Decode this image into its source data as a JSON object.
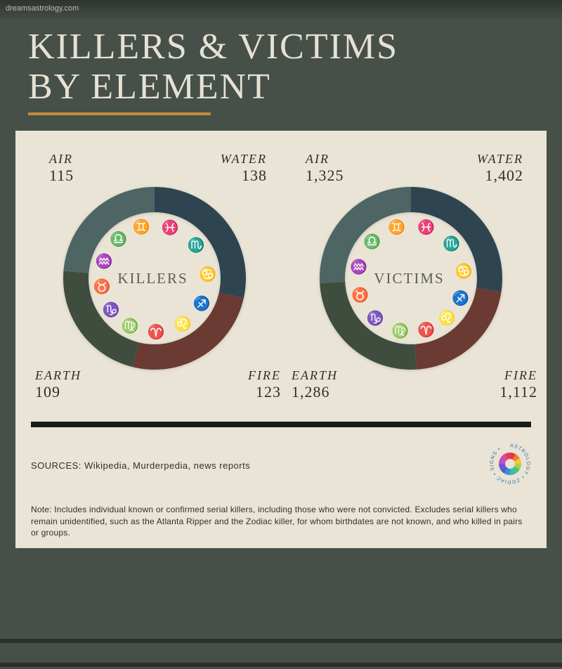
{
  "watermark": "dreamsastrology.com",
  "header": {
    "title_line1": "KILLERS & VICTIMS",
    "title_line2": "BY ELEMENT",
    "title_color": "#e5e1d5",
    "title_fontsize": 52,
    "accent_color": "#c38e3b"
  },
  "colors": {
    "page_bg": "#474f49",
    "panel_bg": "#e9e4d5",
    "divider": "#1a1c1a",
    "text_dark": "#2e2f2b",
    "center_label": "#5b5f56"
  },
  "charts": {
    "type": "donut",
    "outer_radius": 130,
    "inner_radius": 94,
    "center_fontsize": 21,
    "label_name_fontsize": 18,
    "label_val_fontsize": 22,
    "icon_ring_radius": 76,
    "start_angle_deg": -90,
    "segments_order": [
      "water",
      "fire",
      "earth",
      "air"
    ],
    "segment_colors": {
      "air": "#4d6664",
      "water": "#2e4451",
      "fire": "#6a3a33",
      "earth": "#3f4d3f"
    },
    "icon_colors": {
      "air": "#4d6664",
      "water": "#2e4451",
      "fire": "#6a3a33",
      "earth": "#3f4d3f"
    },
    "killers": {
      "center": "KILLERS",
      "segments": {
        "air": {
          "label": "AIR",
          "value": 115,
          "display": "115"
        },
        "water": {
          "label": "WATER",
          "value": 138,
          "display": "138"
        },
        "fire": {
          "label": "FIRE",
          "value": 123,
          "display": "123"
        },
        "earth": {
          "label": "EARTH",
          "value": 109,
          "display": "109"
        }
      }
    },
    "victims": {
      "center": "VICTIMS",
      "segments": {
        "air": {
          "label": "AIR",
          "value": 1325,
          "display": "1,325"
        },
        "water": {
          "label": "WATER",
          "value": 1402,
          "display": "1,402"
        },
        "fire": {
          "label": "FIRE",
          "value": 1112,
          "display": "1,112"
        },
        "earth": {
          "label": "EARTH",
          "value": 1286,
          "display": "1,286"
        }
      }
    },
    "zodiac_icons": [
      {
        "element": "air",
        "name": "aquarius-icon",
        "glyph": "♒"
      },
      {
        "element": "air",
        "name": "libra-icon",
        "glyph": "♎"
      },
      {
        "element": "air",
        "name": "gemini-icon",
        "glyph": "♊"
      },
      {
        "element": "earth",
        "name": "virgo-icon",
        "glyph": "♍"
      },
      {
        "element": "earth",
        "name": "capricorn-icon",
        "glyph": "♑"
      },
      {
        "element": "earth",
        "name": "taurus-icon",
        "glyph": "♉"
      },
      {
        "element": "fire",
        "name": "sagittarius-icon",
        "glyph": "♐"
      },
      {
        "element": "fire",
        "name": "leo-icon",
        "glyph": "♌"
      },
      {
        "element": "fire",
        "name": "aries-icon",
        "glyph": "♈"
      },
      {
        "element": "water",
        "name": "pisces-icon",
        "glyph": "♓"
      },
      {
        "element": "water",
        "name": "scorpio-icon",
        "glyph": "♏"
      },
      {
        "element": "water",
        "name": "cancer-icon",
        "glyph": "♋"
      }
    ]
  },
  "sources": {
    "label": "SOURCES: Wikipedia, Murderpedia, news reports"
  },
  "badge": {
    "outer_text": "ASTROLOGY • ZODIAC • SIGNS •",
    "wheel_colors": [
      "#e23b3b",
      "#f07c2e",
      "#f5c53a",
      "#a8cf4e",
      "#4fbf7b",
      "#3fb9b0",
      "#3d8fcf",
      "#4a5fd1",
      "#7a4fd1",
      "#b74fcf",
      "#d94a9a",
      "#e23b6a"
    ],
    "text_color": "#2f6fb0",
    "size": 60
  },
  "footnote": "Note: Includes individual known or confirmed serial killers, including those who were not convicted. Excludes serial killers who remain unidentified, such as the Atlanta Ripper and the Zodiac killer, for whom birthdates are not known, and who killed in pairs or groups.",
  "zigzag": {
    "stroke": "#2c2f2c",
    "stroke_width": 6,
    "amplitude": 32,
    "period": 60
  }
}
